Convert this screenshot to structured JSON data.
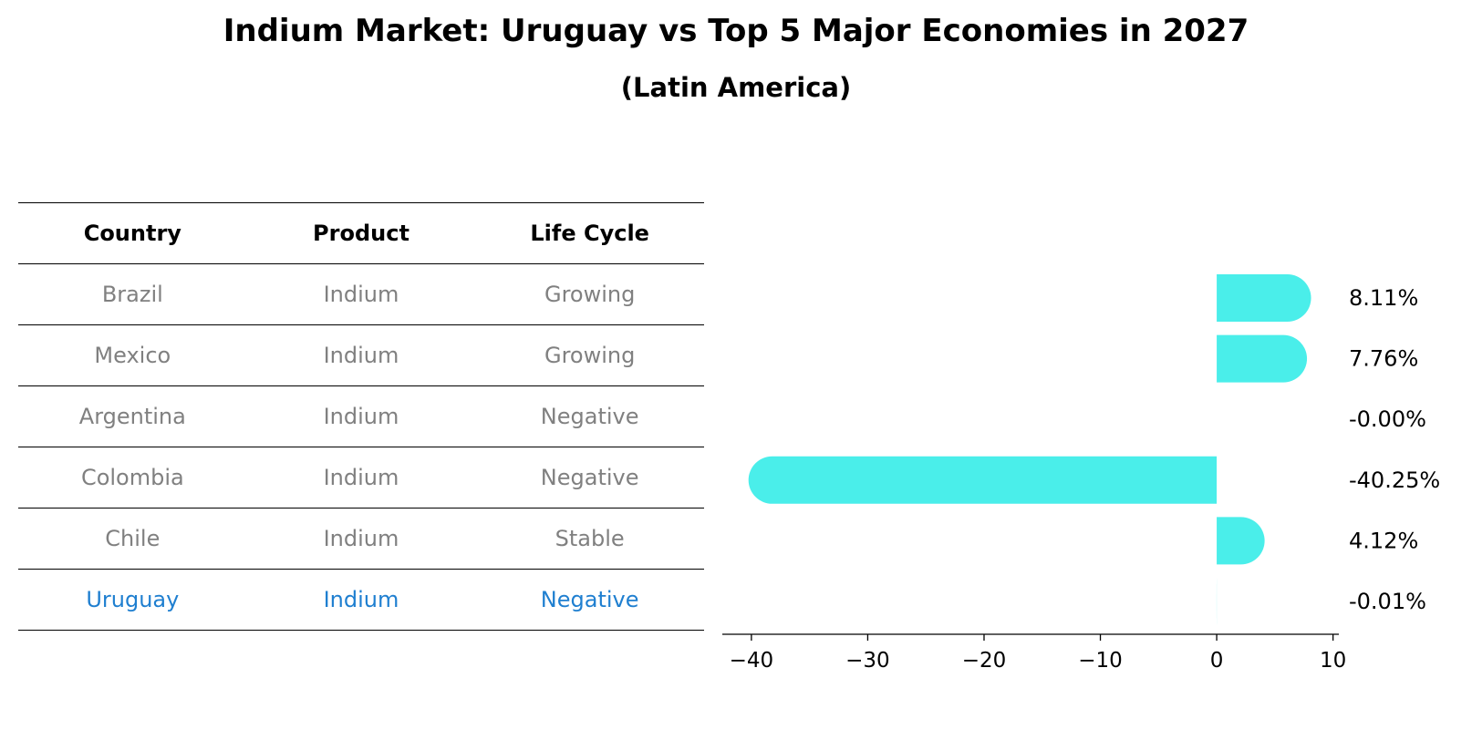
{
  "chart_data": {
    "type": "bar",
    "orientation": "horizontal",
    "title": "Indium Market: Uruguay vs Top 5 Major Economies in 2027",
    "subtitle": "(Latin America)",
    "xlabel": "",
    "ylabel": "",
    "xlim": [
      -42.5,
      10.5
    ],
    "xticks": [
      -40,
      -30,
      -20,
      -10,
      0,
      10
    ],
    "xtick_labels": [
      "−40",
      "−30",
      "−20",
      "−10",
      "0",
      "10"
    ],
    "categories": [
      "Brazil",
      "Mexico",
      "Argentina",
      "Colombia",
      "Chile",
      "Uruguay"
    ],
    "values": [
      8.11,
      7.76,
      -0.0,
      -40.25,
      4.12,
      -0.01
    ],
    "value_labels": [
      "8.11%",
      "7.76%",
      "-0.00%",
      "-40.25%",
      "4.12%",
      "-0.01%"
    ],
    "bar_color": "#4aeeea",
    "highlight_color": "#1f7fd0",
    "highlight_category": "Uruguay",
    "table": {
      "headers": [
        "Country",
        "Product",
        "Life Cycle"
      ],
      "rows": [
        [
          "Brazil",
          "Indium",
          "Growing"
        ],
        [
          "Mexico",
          "Indium",
          "Growing"
        ],
        [
          "Argentina",
          "Indium",
          "Negative"
        ],
        [
          "Colombia",
          "Indium",
          "Negative"
        ],
        [
          "Chile",
          "Indium",
          "Stable"
        ],
        [
          "Uruguay",
          "Indium",
          "Negative"
        ]
      ]
    }
  }
}
